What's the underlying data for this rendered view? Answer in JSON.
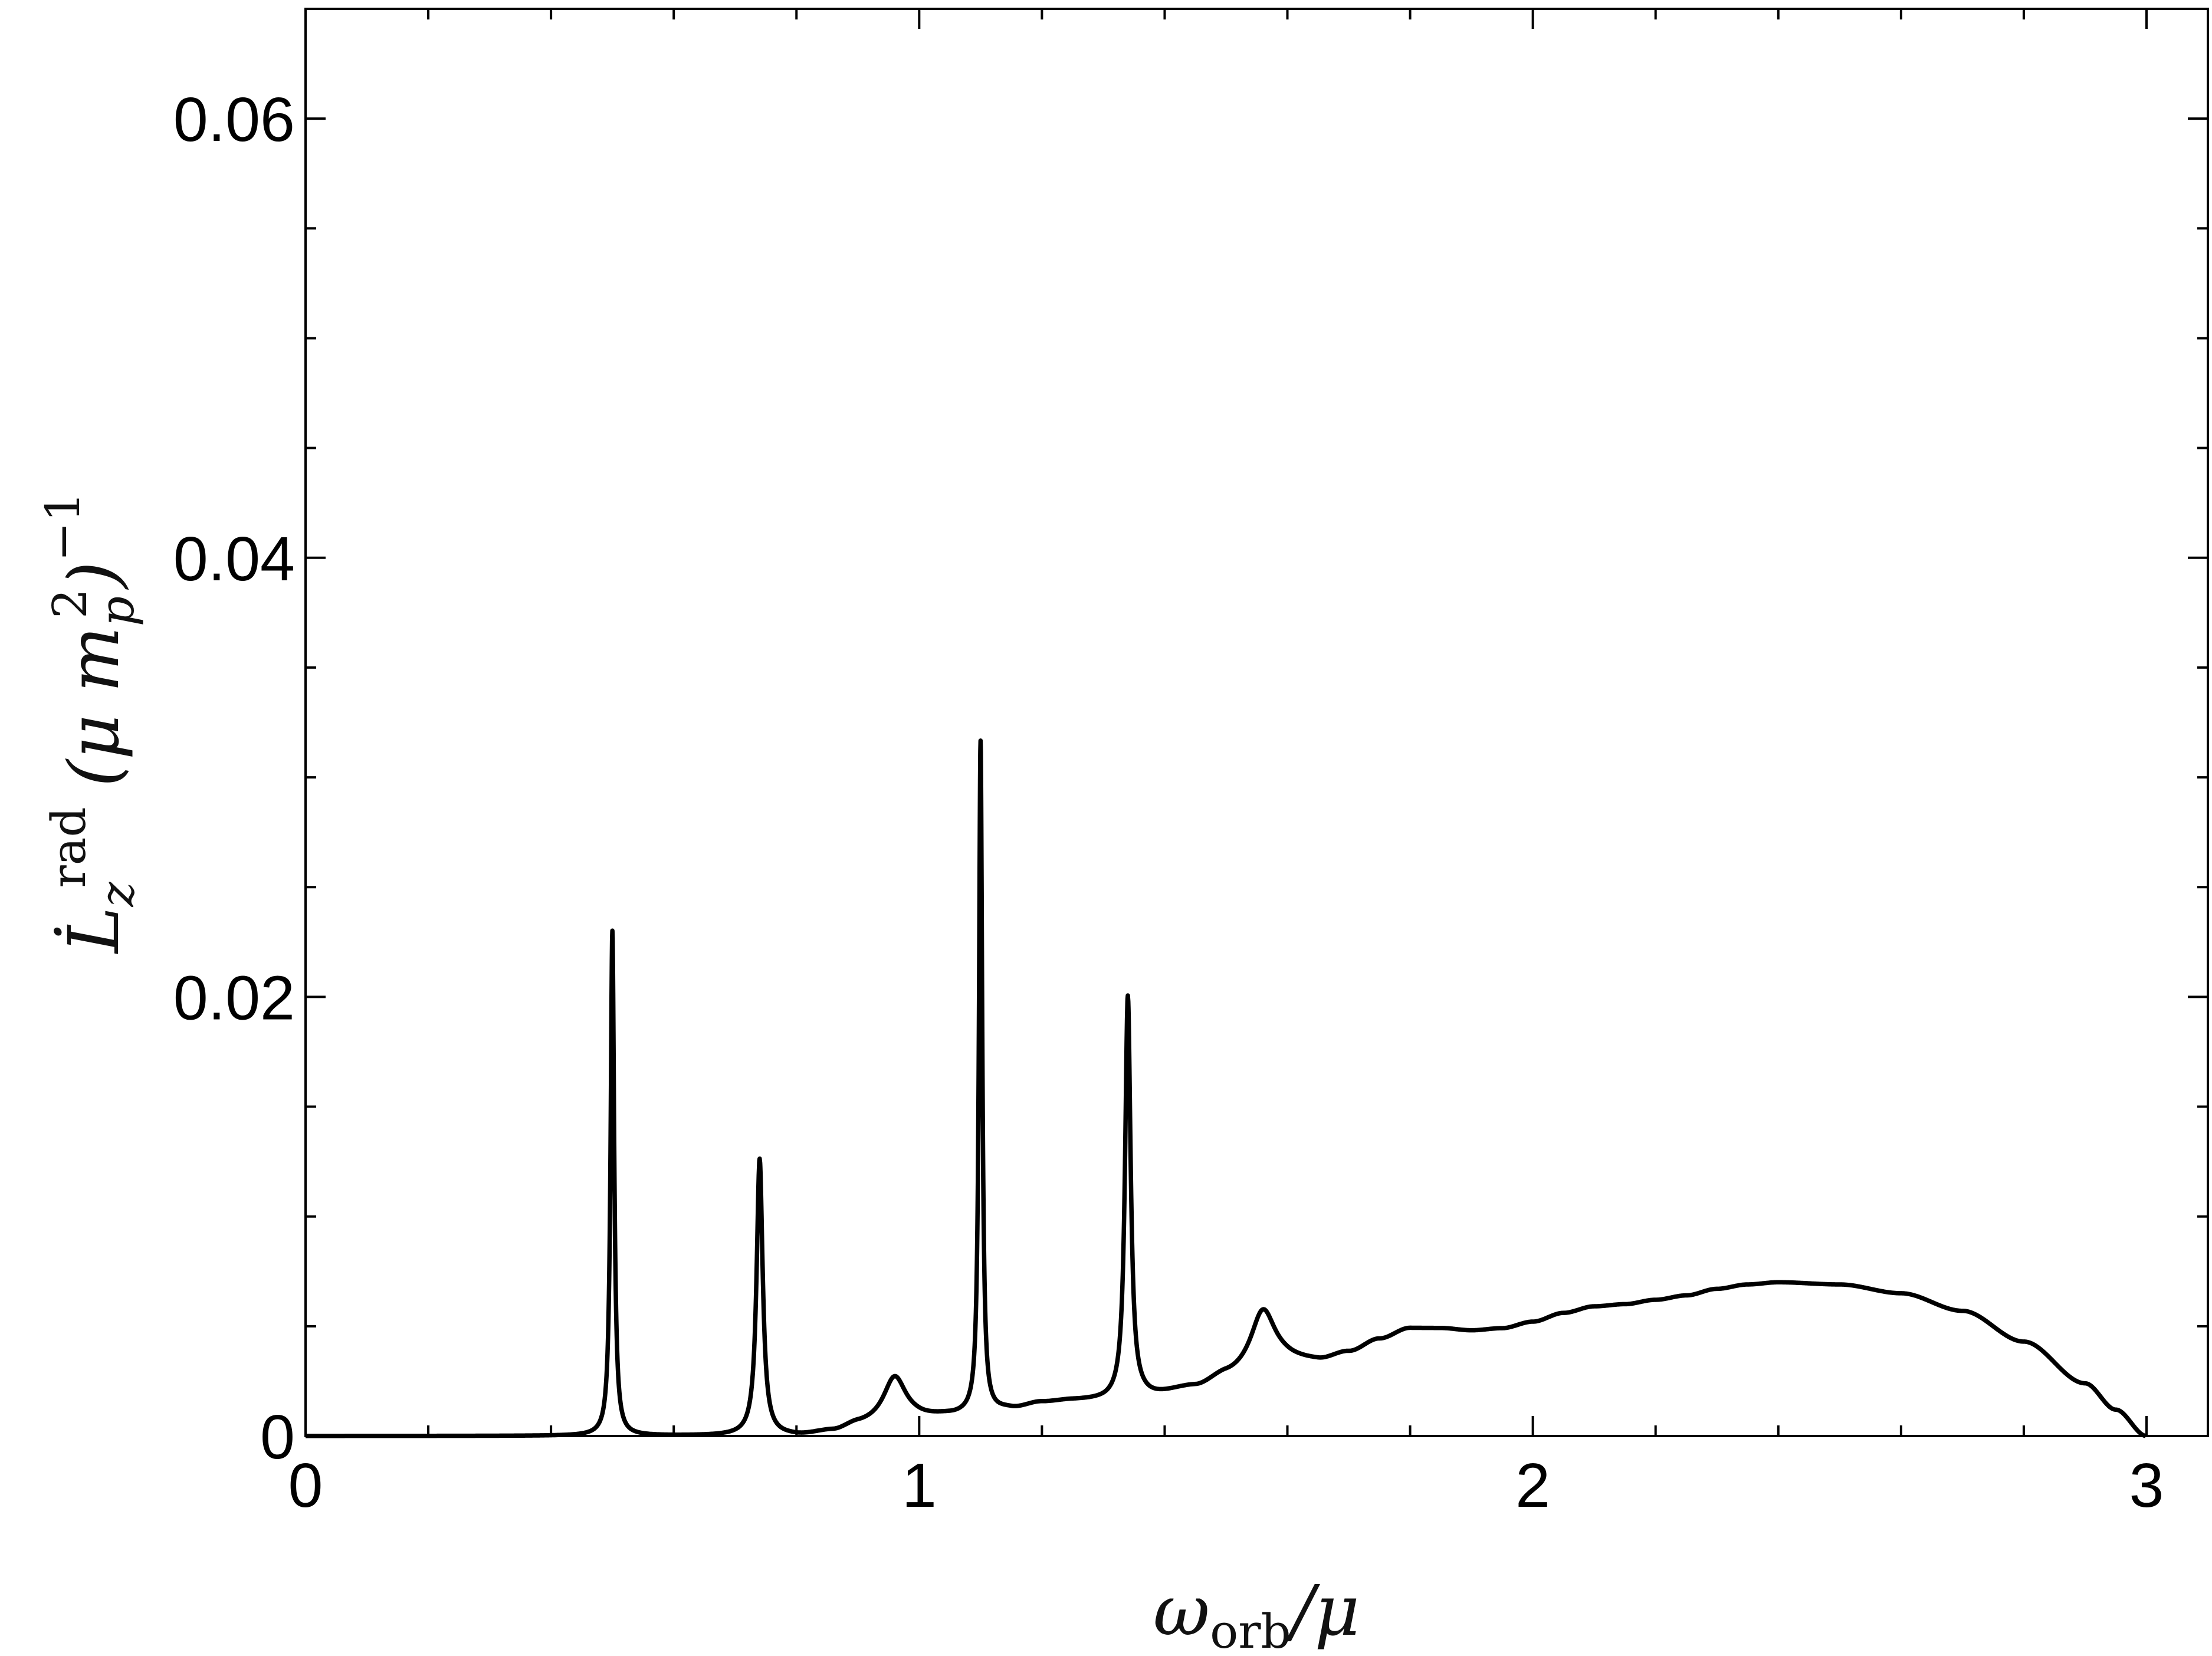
{
  "chart_data": {
    "type": "line",
    "title": "",
    "xlabel": "ω_orb/μ",
    "ylabel": "L̇_z^rad (μ m_p²)^−1",
    "xlim": [
      0,
      3.1
    ],
    "ylim": [
      0,
      0.065
    ],
    "x_ticks": [
      0,
      1,
      2,
      3
    ],
    "x_tick_labels": [
      "0",
      "1",
      "2",
      "3"
    ],
    "x_minor_step": 0.2,
    "y_ticks": [
      0,
      0.02,
      0.04,
      0.06
    ],
    "y_tick_labels": [
      "0",
      "0.02",
      "0.04",
      "0.06"
    ],
    "y_minor_step": 0.005,
    "grid": false,
    "legend": "none",
    "series": [
      {
        "color": "#000000",
        "baseline": [
          [
            0.0,
            0.0
          ],
          [
            0.4,
            0.0
          ],
          [
            0.8,
            0.0
          ],
          [
            0.86,
            0.0002
          ],
          [
            0.9,
            0.0005
          ],
          [
            1.0,
            0.0008
          ],
          [
            1.05,
            0.0009
          ],
          [
            1.1,
            0.001
          ],
          [
            1.15,
            0.0012
          ],
          [
            1.2,
            0.0015
          ],
          [
            1.25,
            0.0016
          ],
          [
            1.3,
            0.0016
          ],
          [
            1.37,
            0.0018
          ],
          [
            1.45,
            0.0022
          ],
          [
            1.5,
            0.0027
          ],
          [
            1.6,
            0.0034
          ],
          [
            1.65,
            0.0034
          ],
          [
            1.7,
            0.0038
          ],
          [
            1.75,
            0.0044
          ],
          [
            1.8,
            0.0049
          ],
          [
            1.85,
            0.0049
          ],
          [
            1.9,
            0.0048
          ],
          [
            1.95,
            0.0049
          ],
          [
            2.0,
            0.0052
          ],
          [
            2.05,
            0.0056
          ],
          [
            2.1,
            0.0059
          ],
          [
            2.15,
            0.006
          ],
          [
            2.2,
            0.0062
          ],
          [
            2.25,
            0.0064
          ],
          [
            2.3,
            0.0067
          ],
          [
            2.35,
            0.0069
          ],
          [
            2.4,
            0.007
          ],
          [
            2.5,
            0.0069
          ],
          [
            2.6,
            0.0065
          ],
          [
            2.7,
            0.0057
          ],
          [
            2.8,
            0.0043
          ],
          [
            2.9,
            0.0024
          ],
          [
            2.95,
            0.0012
          ],
          [
            3.0,
            0.0
          ]
        ],
        "peaks": [
          {
            "x": 0.5,
            "height": 0.023,
            "width": 0.0035
          },
          {
            "x": 0.74,
            "height": 0.0126,
            "width": 0.006
          },
          {
            "x": 0.96,
            "height": 0.002,
            "width": 0.022
          },
          {
            "x": 1.1,
            "height": 0.0306,
            "width": 0.0032
          },
          {
            "x": 1.34,
            "height": 0.0183,
            "width": 0.0055
          },
          {
            "x": 1.56,
            "height": 0.0026,
            "width": 0.024
          }
        ]
      }
    ]
  }
}
